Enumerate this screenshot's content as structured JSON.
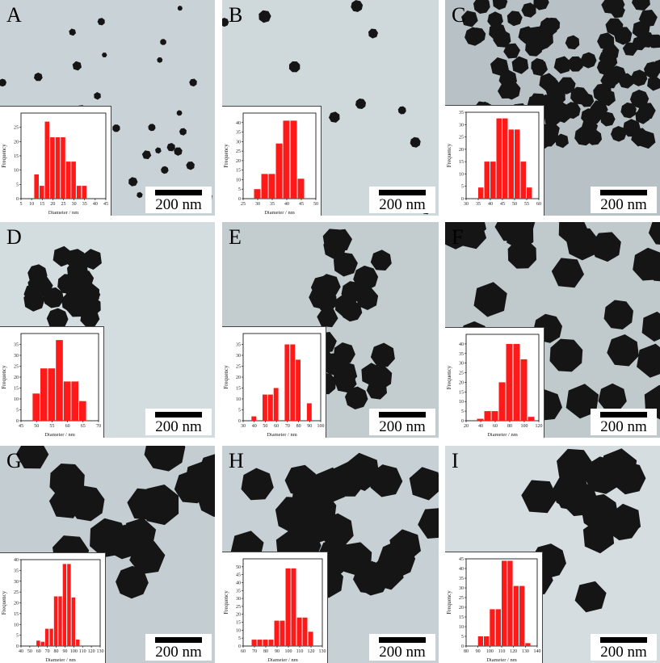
{
  "scale_bar_label": "200 nm",
  "bar_color": "#ff1a1a",
  "chart_data": [
    {
      "label": "A",
      "type": "bar",
      "xlabel": "Diameter / nm",
      "ylabel": "Frequency",
      "xlim": [
        5,
        45
      ],
      "xticks": [
        5,
        10,
        15,
        20,
        25,
        30,
        35,
        40,
        45
      ],
      "ylim": [
        0,
        30
      ],
      "yticks": [
        0,
        5,
        10,
        15,
        20,
        25
      ],
      "bin_width": 2.5,
      "x": [
        12.5,
        15,
        17.5,
        20,
        22.5,
        25,
        27.5,
        30,
        32.5,
        35
      ],
      "values": [
        8.5,
        4.5,
        27,
        21.5,
        21.5,
        21.5,
        13,
        13,
        4.5,
        4.5
      ]
    },
    {
      "label": "B",
      "type": "bar",
      "xlabel": "Diameter / nm",
      "ylabel": "Frequency",
      "xlim": [
        25,
        50
      ],
      "xticks": [
        25,
        30,
        35,
        40,
        45,
        50
      ],
      "ylim": [
        0,
        45
      ],
      "yticks": [
        0,
        5,
        10,
        15,
        20,
        25,
        30,
        35,
        40
      ],
      "bin_width": 2.5,
      "x": [
        30,
        32.5,
        35,
        37.5,
        40,
        42.5,
        45
      ],
      "values": [
        5,
        13,
        13,
        29,
        41,
        41,
        10.5
      ]
    },
    {
      "label": "C",
      "type": "bar",
      "xlabel": "",
      "ylabel": "Frequency",
      "xlim": [
        30,
        60
      ],
      "xticks": [
        30,
        35,
        40,
        45,
        50,
        55,
        60
      ],
      "ylim": [
        0,
        35
      ],
      "yticks": [
        0,
        5,
        10,
        15,
        20,
        25,
        30,
        35
      ],
      "bin_width": 2.5,
      "x": [
        36.25,
        38.75,
        41.25,
        43.75,
        46.25,
        48.75,
        51.25,
        53.75,
        56.25
      ],
      "values": [
        4.5,
        15,
        15,
        32.5,
        32.5,
        28,
        28,
        15,
        4.5
      ]
    },
    {
      "label": "D",
      "type": "bar",
      "xlabel": "Diameter / nm",
      "ylabel": "Frequency",
      "xlim": [
        45,
        70
      ],
      "xticks": [
        45,
        50,
        55,
        60,
        65,
        70
      ],
      "ylim": [
        0,
        40
      ],
      "yticks": [
        0,
        5,
        10,
        15,
        20,
        25,
        30,
        35
      ],
      "bin_width": 2.5,
      "x": [
        50,
        52.5,
        55,
        57.5,
        60,
        62.5,
        65
      ],
      "values": [
        12.5,
        24,
        24,
        37,
        18,
        18,
        9
      ]
    },
    {
      "label": "E",
      "type": "bar",
      "xlabel": "Diameter / nm",
      "ylabel": "Frequency",
      "xlim": [
        30,
        100
      ],
      "xticks": [
        30,
        40,
        50,
        60,
        70,
        80,
        90,
        100
      ],
      "ylim": [
        0,
        40
      ],
      "yticks": [
        0,
        5,
        10,
        15,
        20,
        25,
        30,
        35
      ],
      "bin_width": 5,
      "x": [
        40,
        50,
        55,
        60,
        70,
        75,
        80,
        90
      ],
      "values": [
        2,
        12,
        12,
        15,
        35,
        35,
        28,
        8
      ]
    },
    {
      "label": "F",
      "type": "bar",
      "xlabel": "Diameter / nm",
      "ylabel": "Frequency",
      "xlim": [
        20,
        120
      ],
      "xticks": [
        20,
        40,
        60,
        80,
        100,
        120
      ],
      "ylim": [
        0,
        45
      ],
      "yticks": [
        0,
        5,
        10,
        15,
        20,
        25,
        30,
        35,
        40
      ],
      "bin_width": 10,
      "x": [
        40,
        50,
        60,
        70,
        80,
        90,
        100,
        110
      ],
      "values": [
        1,
        5,
        5,
        20,
        40,
        40,
        32,
        2
      ]
    },
    {
      "label": "G",
      "type": "bar",
      "xlabel": "Diameter / nm",
      "ylabel": "Frequency",
      "xlim": [
        40,
        130
      ],
      "xticks": [
        40,
        50,
        60,
        70,
        80,
        90,
        100,
        110,
        120,
        130
      ],
      "ylim": [
        0,
        40
      ],
      "yticks": [
        0,
        5,
        10,
        15,
        20,
        25,
        30,
        35,
        40
      ],
      "bin_width": 5,
      "x": [
        60,
        65,
        70,
        75,
        80,
        85,
        90,
        95,
        100,
        105
      ],
      "values": [
        2.5,
        2,
        8,
        8,
        23,
        23,
        38,
        38,
        22.5,
        3
      ]
    },
    {
      "label": "H",
      "type": "bar",
      "xlabel": "Diameter / nm",
      "ylabel": "Frequency",
      "xlim": [
        60,
        130
      ],
      "xticks": [
        60,
        70,
        80,
        90,
        100,
        110,
        120,
        130
      ],
      "ylim": [
        0,
        55
      ],
      "yticks": [
        0,
        5,
        10,
        15,
        20,
        25,
        30,
        35,
        40,
        45,
        50
      ],
      "bin_width": 5,
      "x": [
        70,
        75,
        80,
        85,
        90,
        95,
        100,
        105,
        110,
        115,
        120
      ],
      "values": [
        4,
        4,
        4,
        4,
        16,
        16,
        49,
        49,
        18,
        18,
        9
      ]
    },
    {
      "label": "I",
      "type": "bar",
      "xlabel": "Diameter / nm",
      "ylabel": "Frequency",
      "xlim": [
        80,
        140
      ],
      "xticks": [
        80,
        90,
        100,
        110,
        120,
        130,
        140
      ],
      "ylim": [
        0,
        45
      ],
      "yticks": [
        0,
        5,
        10,
        15,
        20,
        25,
        30,
        35,
        40,
        45
      ],
      "bin_width": 5,
      "x": [
        92.5,
        97.5,
        102.5,
        107.5,
        112.5,
        117.5,
        122.5,
        127.5,
        132.5
      ],
      "values": [
        5,
        5,
        19,
        19,
        44,
        44,
        31,
        31,
        1.5
      ]
    }
  ]
}
